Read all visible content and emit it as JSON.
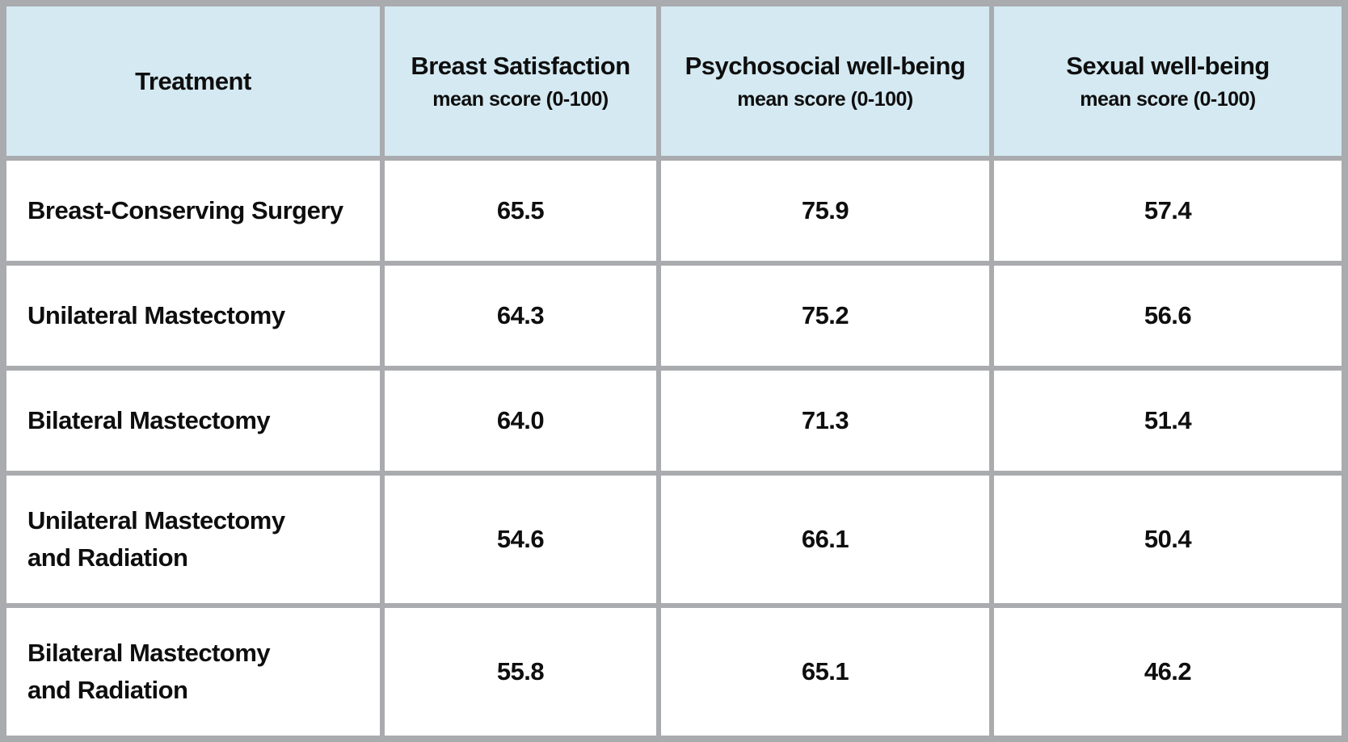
{
  "colors": {
    "header_bg": "#d4e9f2",
    "grid_border": "#a9abae",
    "cell_bg": "#ffffff",
    "text": "#0e0e0e"
  },
  "chart_data": {
    "type": "table",
    "title": "",
    "columns": [
      {
        "title": "Treatment",
        "subtitle": ""
      },
      {
        "title": "Breast Satisfaction",
        "subtitle": "mean score (0-100)"
      },
      {
        "title": "Psychosocial well-being",
        "subtitle": "mean score (0-100)"
      },
      {
        "title": "Sexual well-being",
        "subtitle": "mean score (0-100)"
      }
    ],
    "score_range": [
      0,
      100
    ],
    "rows": [
      {
        "treatment": "Breast-Conserving Surgery",
        "values": [
          "65.5",
          "75.9",
          "57.4"
        ]
      },
      {
        "treatment": "Unilateral Mastectomy",
        "values": [
          "64.3",
          "75.2",
          "56.6"
        ]
      },
      {
        "treatment": "Bilateral Mastectomy",
        "values": [
          "64.0",
          "71.3",
          "51.4"
        ]
      },
      {
        "treatment": "Unilateral Mastectomy\nand Radiation",
        "values": [
          "54.6",
          "66.1",
          "50.4"
        ]
      },
      {
        "treatment": "Bilateral Mastectomy\nand Radiation",
        "values": [
          "55.8",
          "65.1",
          "46.2"
        ]
      }
    ]
  }
}
